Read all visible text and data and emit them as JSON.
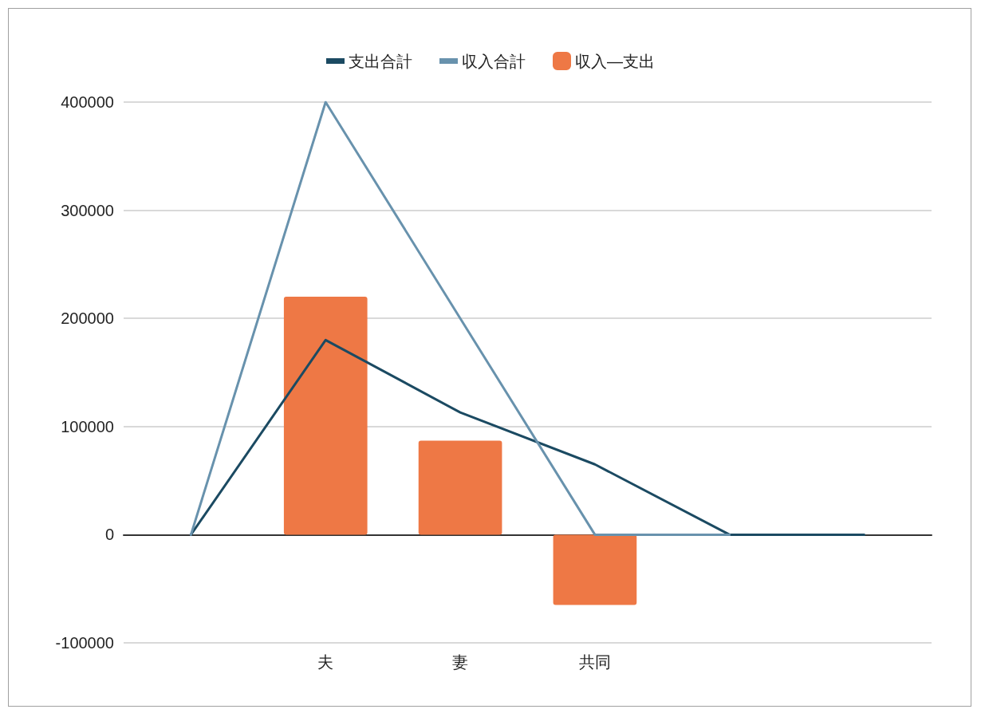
{
  "chart_data": {
    "type": "line",
    "categories": [
      null,
      "夫",
      "妻",
      "共同",
      null,
      null
    ],
    "series": [
      {
        "name": "支出合計",
        "color": "#1b4a62",
        "values": [
          0,
          180000,
          113000,
          65000,
          0,
          0
        ]
      },
      {
        "name": "収入合計",
        "color": "#6892ad",
        "values": [
          0,
          400000,
          200000,
          0,
          0,
          null
        ]
      },
      {
        "name": "収入—支出",
        "type": "bar",
        "color": "#ee7845",
        "values": [
          null,
          220000,
          87000,
          -65000,
          null,
          null
        ]
      }
    ],
    "ylim": [
      -100000,
      400000
    ],
    "yticks": [
      -100000,
      0,
      100000,
      200000,
      300000,
      400000
    ],
    "grid": "y",
    "legend": "top",
    "marker": "none",
    "line_style": "solid"
  }
}
